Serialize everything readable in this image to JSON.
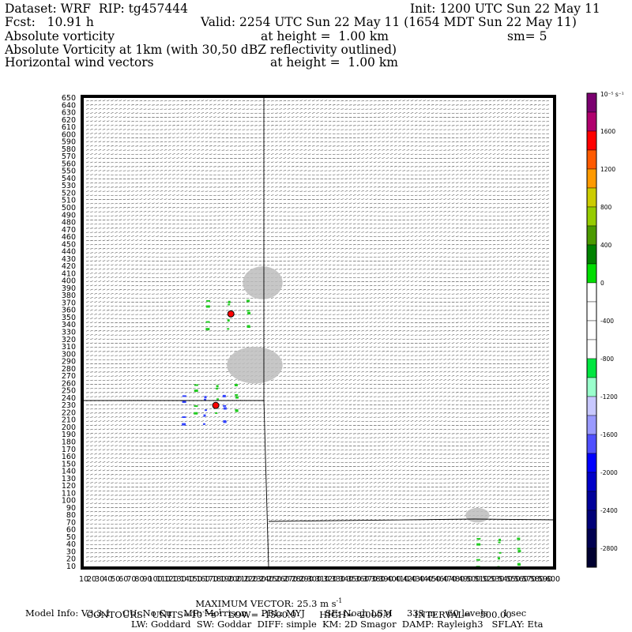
{
  "header": {
    "dataset": "Dataset: WRF  RIP: tg457444",
    "init": "Init: 1200 UTC Sun 22 May 11",
    "fcst": "Fcst:   10.91 h",
    "valid": "Valid: 2254 UTC Sun 22 May 11 (1654 MDT Sun 22 May 11)",
    "field1_name": "Absolute vorticity",
    "field1_height": "at height =  1.00 km",
    "field1_sm": "sm= 5",
    "field2_name": "Absolute Vorticity at 1km (with 30,50 dBZ reflectivity outlined)",
    "field3_name": "Horizontal wind vectors",
    "field3_height": "at height =  1.00 km"
  },
  "footer": {
    "max_vector_label": "MAXIMUM VECTOR:",
    "max_vector_value": "25.3 m s",
    "max_vector_exp": "-1",
    "contours": "CONTOURS:  UNITS=10",
    "contours_exp1": "-5",
    "contours_s": " s",
    "contours_exp2": "-1",
    "contours_rest": "  LOW= -1500.0        HIGH=  2000.0        INTERVAL=   500.00",
    "model_info": "Model Info: V3.3.1    CU: No Cu    MP: Morrison     PBL: MYJ       SF: Noah LSM     333 m    60 levels     1 sec",
    "model_info2": "LW: Goddard  SW: Goddar  DIFF: simple  KM: 2D Smagor  DAMP: Rayleigh3   SFLAY: Eta"
  },
  "colors": {
    "frame": "#000000",
    "vectors": "#444444",
    "reflectivity_fill": "#bdbdbd",
    "vorticity_positive": "#22cc22",
    "vorticity_negative": "#3344ff",
    "vorticity_max": "#ff0000"
  },
  "colorbar": {
    "units": "10⁻⁵ s⁻¹",
    "labels": [
      "1600",
      "1200",
      "800",
      "400",
      "0",
      "-400",
      "-800",
      "-1200",
      "-1600",
      "-2000",
      "-2400",
      "-2800"
    ],
    "colors": [
      "#7b0070",
      "#b0006e",
      "#ff0000",
      "#ff5a00",
      "#ff9a00",
      "#cccc00",
      "#96cc00",
      "#4b9a00",
      "#008200",
      "#00dd00",
      "#ffffff",
      "#ffffff",
      "#ffffff",
      "#ffffff",
      "#00e640",
      "#9affcc",
      "#c8c8ff",
      "#9a9aff",
      "#5050ff",
      "#0000ff",
      "#0000c8",
      "#00009a",
      "#000078",
      "#000050",
      "#000030"
    ]
  },
  "chart_data": {
    "type": "heatmap",
    "title": "Absolute vorticity / Absolute Vorticity at 1km (with 30,50 dBZ reflectivity outlined) / Horizontal wind vectors",
    "xlabel": "",
    "ylabel": "",
    "xlim": [
      10,
      600
    ],
    "ylim": [
      10,
      650
    ],
    "y_ticks": [
      10,
      20,
      30,
      40,
      50,
      60,
      70,
      80,
      90,
      100,
      110,
      120,
      130,
      140,
      150,
      160,
      170,
      180,
      190,
      200,
      210,
      220,
      230,
      240,
      250,
      260,
      270,
      280,
      290,
      300,
      310,
      320,
      330,
      340,
      350,
      360,
      370,
      380,
      390,
      400,
      410,
      420,
      430,
      440,
      450,
      460,
      470,
      480,
      490,
      500,
      510,
      520,
      530,
      540,
      550,
      560,
      570,
      580,
      590,
      600,
      610,
      620,
      630,
      640,
      650
    ],
    "x_ticks": [
      10,
      20,
      30,
      40,
      50,
      60,
      70,
      80,
      90,
      100,
      110,
      120,
      130,
      140,
      150,
      160,
      170,
      180,
      190,
      200,
      210,
      220,
      230,
      240,
      250,
      260,
      270,
      280,
      290,
      300,
      310,
      320,
      330,
      340,
      350,
      360,
      370,
      380,
      390,
      400,
      410,
      420,
      430,
      440,
      450,
      460,
      470,
      480,
      490,
      500,
      510,
      520,
      530,
      540,
      550,
      560,
      570,
      580,
      590,
      600
    ],
    "contour_low": -1500.0,
    "contour_high": 2000.0,
    "contour_interval": 500.0,
    "max_vector_ms": 25.3,
    "reflectivity_regions": [
      {
        "x": [
          210,
          260
        ],
        "y": [
          375,
          420
        ]
      },
      {
        "x": [
          190,
          260
        ],
        "y": [
          260,
          310
        ]
      },
      {
        "x": [
          490,
          520
        ],
        "y": [
          70,
          90
        ]
      }
    ],
    "vorticity_features": [
      {
        "sign": "positive",
        "x": 190,
        "y": 355
      },
      {
        "sign": "positive",
        "x": 175,
        "y": 240
      },
      {
        "sign": "negative",
        "x": 160,
        "y": 225
      },
      {
        "sign": "positive",
        "x": 530,
        "y": 30
      }
    ]
  }
}
